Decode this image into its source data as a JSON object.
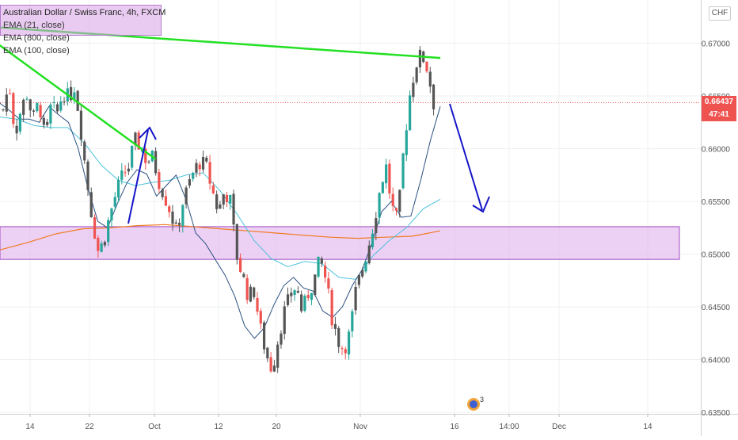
{
  "legend": {
    "title": "Australian Dollar / Swiss Franc, 4h, FXCM",
    "ema21": "EMA (21, close)",
    "ema800": "EMA (800, close)",
    "ema100": "EMA (100, close)"
  },
  "currency": "CHF",
  "last_price": "0.66437",
  "countdown": "47:41",
  "icon_badge": "3",
  "colors": {
    "up": "#26a69a",
    "down": "#ef5350",
    "candle_dark": "#555555",
    "trend": "#22e022",
    "arrow": "#1515c8",
    "zone": "#e1b2ef",
    "ema21": "#2a4f80",
    "ema100": "#4bc2dc",
    "ema800": "#f07a20"
  },
  "chart_data": {
    "type": "candlestick",
    "y_ticks": [
      "0.67000",
      "0.66500",
      "0.66000",
      "0.65500",
      "0.65000",
      "0.64500",
      "0.64000",
      "0.63500"
    ],
    "x_ticks": [
      "14",
      "22",
      "Oct",
      "12",
      "20",
      "Nov",
      "16",
      "14:00",
      "Dec",
      "14"
    ],
    "ylim": [
      0.6345,
      0.6725
    ],
    "path": [
      0.6637,
      0.6662,
      0.6613,
      0.6638,
      0.6652,
      0.6627,
      0.6645,
      0.6608,
      0.664,
      0.6633,
      0.6654,
      0.6648,
      0.666,
      0.6618,
      0.657,
      0.653,
      0.65,
      0.6518,
      0.654,
      0.656,
      0.6575,
      0.6583,
      0.6608,
      0.6602,
      0.6588,
      0.6592,
      0.657,
      0.6555,
      0.654,
      0.652,
      0.6548,
      0.6565,
      0.658,
      0.6588,
      0.6582,
      0.656,
      0.654,
      0.656,
      0.655,
      0.65,
      0.648,
      0.646,
      0.6465,
      0.643,
      0.6405,
      0.639,
      0.642,
      0.6445,
      0.646,
      0.647,
      0.6445,
      0.6462,
      0.6475,
      0.6495,
      0.6475,
      0.644,
      0.6418,
      0.641,
      0.6425,
      0.6465,
      0.6485,
      0.6505,
      0.653,
      0.656,
      0.6585,
      0.6545,
      0.653,
      0.66,
      0.665,
      0.668,
      0.669,
      0.6675,
      0.6643
    ],
    "ema21": [
      0.6643,
      0.6636,
      0.6628,
      0.6628,
      0.6625,
      0.664,
      0.6632,
      0.6625,
      0.66,
      0.6562,
      0.6531,
      0.6525,
      0.6548,
      0.6568,
      0.658,
      0.6576,
      0.6555,
      0.6565,
      0.6575,
      0.6552,
      0.652,
      0.651,
      0.6495,
      0.648,
      0.646,
      0.6432,
      0.642,
      0.643,
      0.6452,
      0.647,
      0.6478,
      0.6468,
      0.6465,
      0.6446,
      0.644,
      0.645,
      0.647,
      0.6485,
      0.651,
      0.654,
      0.655,
      0.6535,
      0.6536,
      0.657,
      0.6608,
      0.664
    ],
    "ema100": [
      0.663,
      0.6628,
      0.6622,
      0.662,
      0.662,
      0.6605,
      0.6584,
      0.657,
      0.6565,
      0.6568,
      0.657,
      0.6575,
      0.6577,
      0.656,
      0.6538,
      0.6513,
      0.6496,
      0.6488,
      0.6493,
      0.6491,
      0.6478,
      0.6476,
      0.6498,
      0.6513,
      0.6525,
      0.6543,
      0.6552
    ],
    "ema800": [
      0.6504,
      0.6511,
      0.6519,
      0.6524,
      0.6525,
      0.6527,
      0.6528,
      0.6526,
      0.6524,
      0.6522,
      0.652,
      0.6518,
      0.6516,
      0.6515,
      0.6516,
      0.6517,
      0.6522
    ],
    "trendlines": [
      {
        "from": [
          -1,
          0.6715
        ],
        "to": [
          129,
          0.6686
        ]
      },
      {
        "from": [
          -1,
          0.6698
        ],
        "to": [
          45,
          0.659
        ]
      }
    ],
    "zone": {
      "y_low": 0.6495,
      "y_high": 0.6526
    },
    "price_line": 0.66437
  }
}
